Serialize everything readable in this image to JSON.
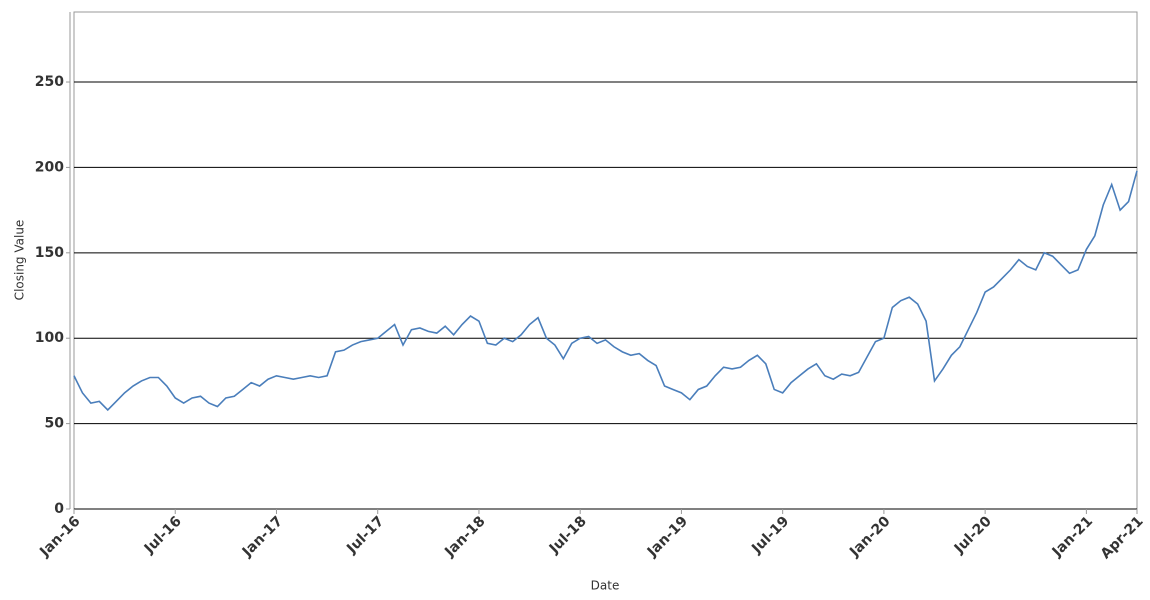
{
  "chart_data": {
    "type": "line",
    "x_label": "Date",
    "y_label": "Closing Value",
    "x": [
      0,
      0.5,
      1,
      1.5,
      2,
      2.5,
      3,
      3.5,
      4,
      4.5,
      5,
      5.5,
      6,
      6.5,
      7,
      7.5,
      8,
      8.5,
      9,
      9.5,
      10,
      10.5,
      11,
      11.5,
      12,
      12.5,
      13,
      13.5,
      14,
      14.5,
      15,
      15.5,
      16,
      16.5,
      17,
      17.5,
      18,
      18.5,
      19,
      19.5,
      20,
      20.5,
      21,
      21.5,
      22,
      22.5,
      23,
      23.5,
      24,
      24.5,
      25,
      25.5,
      26,
      26.5,
      27,
      27.5,
      28,
      28.5,
      29,
      29.5,
      30,
      30.5,
      31,
      31.5,
      32,
      32.5,
      33,
      33.5,
      34,
      34.5,
      35,
      35.5,
      36,
      36.5,
      37,
      37.5,
      38,
      38.5,
      39,
      39.5,
      40,
      40.5,
      41,
      41.5,
      42,
      42.5,
      43,
      43.5,
      44,
      44.5,
      45,
      45.5,
      46,
      46.5,
      47,
      47.5,
      48,
      48.5,
      49,
      49.5,
      50,
      50.5,
      51,
      51.5,
      52,
      52.5,
      53,
      53.5,
      54,
      54.5,
      55,
      55.5,
      56,
      56.5,
      57,
      57.5,
      58,
      58.5,
      59,
      59.5,
      60,
      60.5,
      61,
      61.5,
      62,
      62.5,
      63
    ],
    "series": [
      {
        "name": "Closing Value",
        "color": "#4a7ebb",
        "values": [
          78,
          68,
          62,
          63,
          58,
          63,
          68,
          72,
          75,
          77,
          77,
          72,
          65,
          62,
          65,
          66,
          62,
          60,
          65,
          66,
          70,
          74,
          72,
          76,
          78,
          77,
          76,
          77,
          78,
          77,
          78,
          92,
          93,
          96,
          98,
          99,
          100,
          104,
          108,
          96,
          105,
          106,
          104,
          103,
          107,
          102,
          108,
          113,
          110,
          97,
          96,
          100,
          98,
          102,
          108,
          112,
          100,
          96,
          88,
          97,
          100,
          101,
          97,
          99,
          95,
          92,
          90,
          91,
          87,
          84,
          72,
          70,
          68,
          64,
          70,
          72,
          78,
          83,
          82,
          83,
          87,
          90,
          85,
          70,
          68,
          74,
          78,
          82,
          85,
          78,
          76,
          79,
          78,
          80,
          89,
          98,
          100,
          118,
          122,
          124,
          120,
          110,
          75,
          82,
          90,
          95,
          105,
          115,
          127,
          130,
          135,
          140,
          146,
          142,
          140,
          150,
          148,
          143,
          138,
          140,
          152,
          160,
          178,
          190,
          175,
          180,
          198
        ]
      }
    ],
    "xlim": [
      0,
      63
    ],
    "xticks": [
      {
        "value": 0,
        "label": "Jan-16"
      },
      {
        "value": 6,
        "label": "Jul-16"
      },
      {
        "value": 12,
        "label": "Jan-17"
      },
      {
        "value": 18,
        "label": "Jul-17"
      },
      {
        "value": 24,
        "label": "Jan-18"
      },
      {
        "value": 30,
        "label": "Jul-18"
      },
      {
        "value": 36,
        "label": "Jan-19"
      },
      {
        "value": 42,
        "label": "Jul-19"
      },
      {
        "value": 48,
        "label": "Jan-20"
      },
      {
        "value": 54,
        "label": "Jul-20"
      },
      {
        "value": 60,
        "label": "Jan-21"
      },
      {
        "value": 63,
        "label": "Apr-21"
      }
    ],
    "ylim": [
      0,
      291
    ],
    "yticks": [
      0,
      50,
      100,
      150,
      200,
      250
    ],
    "grid": true
  }
}
